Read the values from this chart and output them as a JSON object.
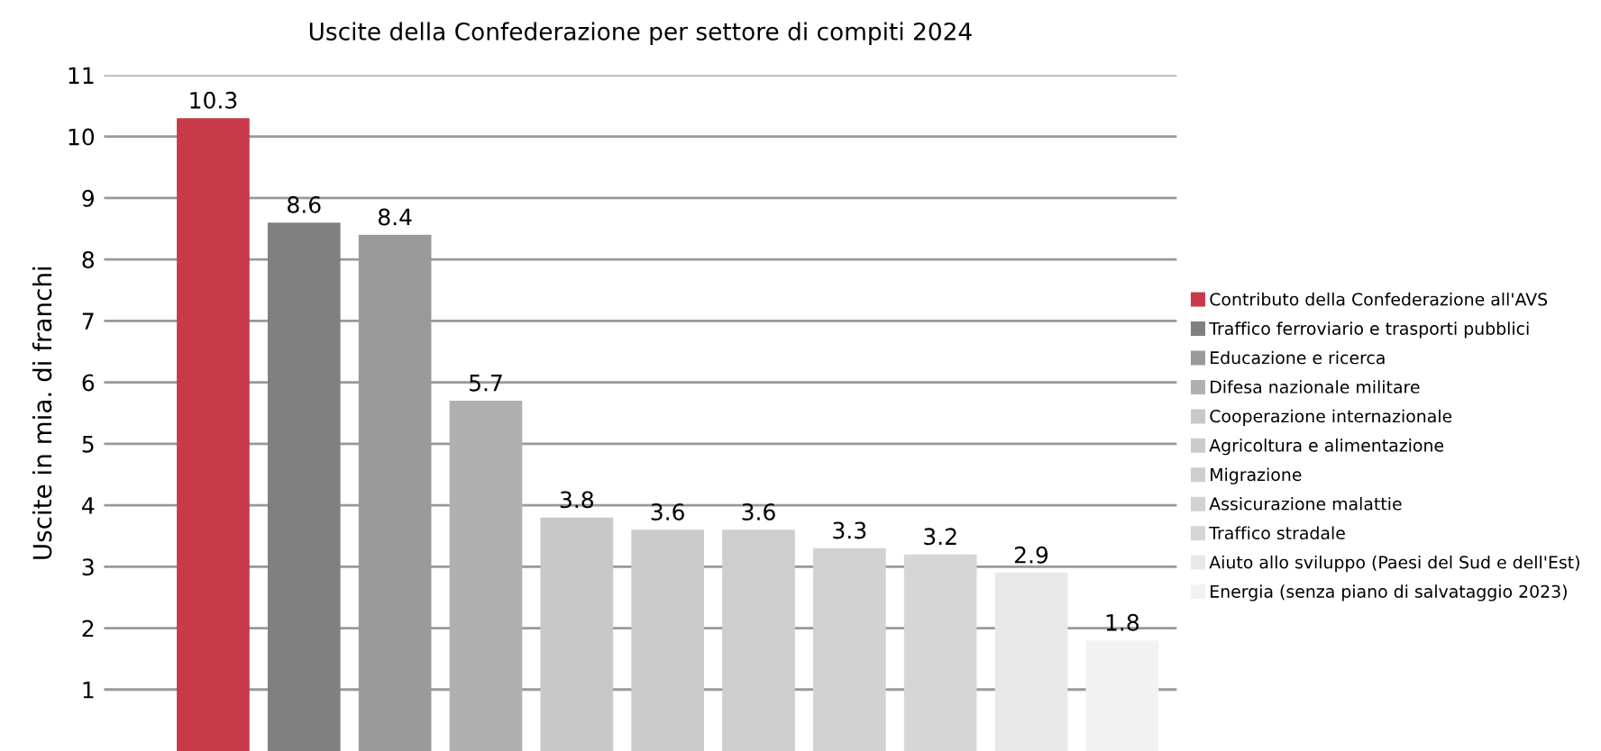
{
  "chart_data": {
    "type": "bar",
    "title": "Uscite della Confederazione per settore di compiti 2024",
    "ylabel": "Uscite in mia. di franchi",
    "categories": [
      null,
      null,
      null,
      null,
      null,
      null,
      null,
      null,
      null,
      null,
      null
    ],
    "series": [
      {
        "name": "Contributo della Confederazione all'AVS",
        "color": "#c8394a",
        "values": [
          10.3,
          null,
          null,
          null,
          null,
          null,
          null,
          null,
          null,
          null,
          null
        ]
      },
      {
        "name": "Traffico ferroviario e trasporti pubblici",
        "color": "#808080",
        "values": [
          null,
          8.6,
          null,
          null,
          null,
          null,
          null,
          null,
          null,
          null,
          null
        ]
      },
      {
        "name": "Educazione e ricerca",
        "color": "#9a9a9a",
        "values": [
          null,
          null,
          8.4,
          null,
          null,
          null,
          null,
          null,
          null,
          null,
          null
        ]
      },
      {
        "name": "Difesa nazionale militare",
        "color": "#b0b0b0",
        "values": [
          null,
          null,
          null,
          5.7,
          null,
          null,
          null,
          null,
          null,
          null,
          null
        ]
      },
      {
        "name": "Cooperazione internazionale",
        "color": "#c8c8c8",
        "values": [
          null,
          null,
          null,
          null,
          3.8,
          null,
          null,
          null,
          null,
          null,
          null
        ]
      },
      {
        "name": "Agricoltura e alimentazione",
        "color": "#cbcbcb",
        "values": [
          null,
          null,
          null,
          null,
          null,
          3.6,
          null,
          null,
          null,
          null,
          null
        ]
      },
      {
        "name": "Migrazione",
        "color": "#cecece",
        "values": [
          null,
          null,
          null,
          null,
          null,
          null,
          3.6,
          null,
          null,
          null,
          null
        ]
      },
      {
        "name": "Assicurazione malattie",
        "color": "#d2d2d2",
        "values": [
          null,
          null,
          null,
          null,
          null,
          null,
          null,
          3.3,
          null,
          null,
          null
        ]
      },
      {
        "name": "Traffico stradale",
        "color": "#d6d6d6",
        "values": [
          null,
          null,
          null,
          null,
          null,
          null,
          null,
          null,
          3.2,
          null,
          null
        ]
      },
      {
        "name": "Aiuto allo sviluppo (Paesi del Sud e dell'Est)",
        "color": "#e8e8e8",
        "values": [
          null,
          null,
          null,
          null,
          null,
          null,
          null,
          null,
          null,
          2.9,
          null
        ]
      },
      {
        "name": "Energia (senza piano di salvataggio 2023)",
        "color": "#f2f2f2",
        "values": [
          null,
          null,
          null,
          null,
          null,
          null,
          null,
          null,
          null,
          null,
          1.8
        ]
      }
    ],
    "stacked": true,
    "ylim": [
      0,
      11
    ],
    "yticks": [
      1,
      2,
      3,
      4,
      5,
      6,
      7,
      8,
      9,
      10,
      11
    ],
    "grid": "y",
    "legend": "right",
    "data_labels": true,
    "tick_labels": "y"
  }
}
